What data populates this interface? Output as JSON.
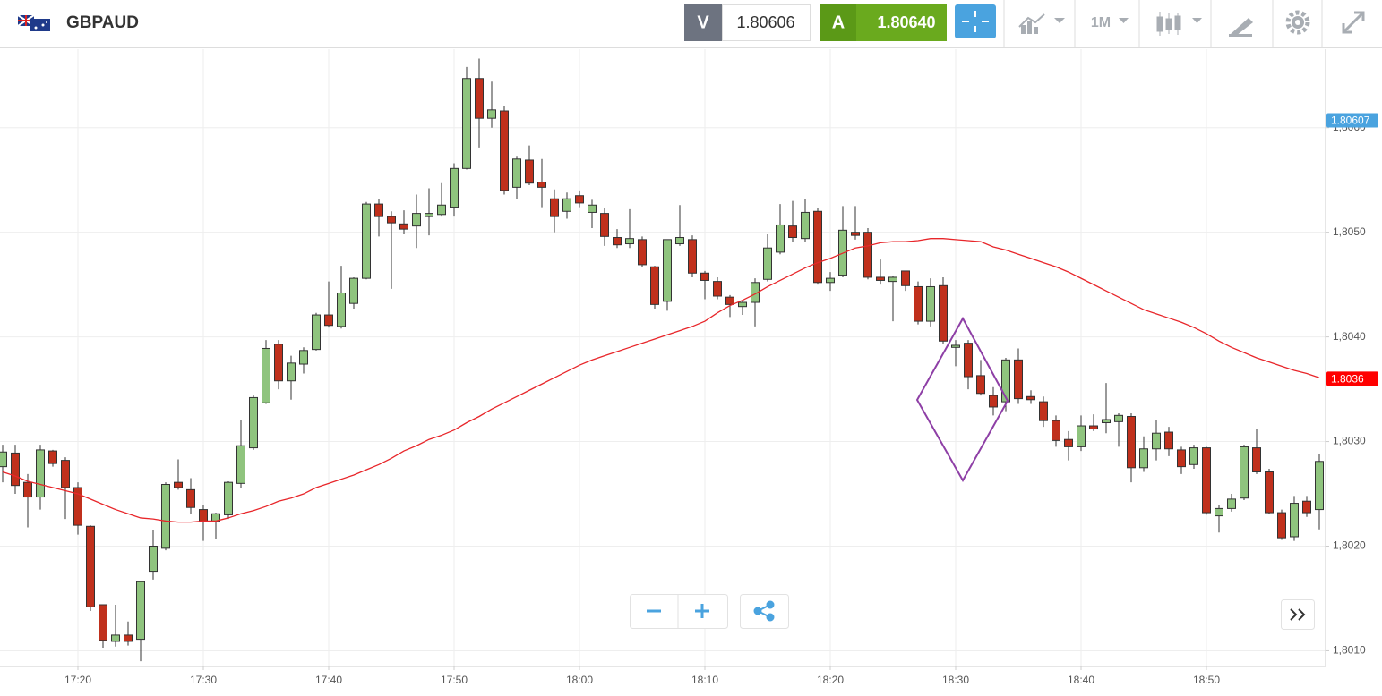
{
  "header": {
    "symbol": "GBPAUD",
    "sell_label": "V",
    "sell_price": "1.80606",
    "buy_label": "A",
    "buy_price": "1.80640",
    "timeframe": "1M"
  },
  "chart_data": {
    "type": "candlestick",
    "x": [
      "17:14",
      "17:15",
      "17:16",
      "17:17",
      "17:18",
      "17:19",
      "17:20",
      "17:21",
      "17:22",
      "17:23",
      "17:24",
      "17:25",
      "17:26",
      "17:27",
      "17:28",
      "17:29",
      "17:30",
      "17:31",
      "17:32",
      "17:33",
      "17:34",
      "17:35",
      "17:36",
      "17:37",
      "17:38",
      "17:39",
      "17:40",
      "17:41",
      "17:42",
      "17:43",
      "17:44",
      "17:45",
      "17:46",
      "17:47",
      "17:48",
      "17:49",
      "17:50",
      "17:51",
      "17:52",
      "17:53",
      "17:54",
      "17:55",
      "17:56",
      "17:57",
      "17:58",
      "17:59",
      "18:00",
      "18:01",
      "18:02",
      "18:03",
      "18:04",
      "18:05",
      "18:06",
      "18:07",
      "18:08",
      "18:09",
      "18:10",
      "18:11",
      "18:12",
      "18:13",
      "18:14",
      "18:15",
      "18:16",
      "18:17",
      "18:18",
      "18:19",
      "18:20",
      "18:21",
      "18:22",
      "18:23",
      "18:24",
      "18:25",
      "18:26",
      "18:27",
      "18:28",
      "18:29",
      "18:30",
      "18:31",
      "18:32",
      "18:33",
      "18:34",
      "18:35",
      "18:36",
      "18:37",
      "18:38",
      "18:39",
      "18:40",
      "18:41",
      "18:42",
      "18:43",
      "18:44",
      "18:45",
      "18:46",
      "18:47",
      "18:48",
      "18:49",
      "18:50",
      "18:51",
      "18:52",
      "18:53",
      "18:54",
      "18:55",
      "18:56",
      "18:57",
      "18:58",
      "18:59"
    ],
    "open": [
      1.80276,
      1.80289,
      1.80261,
      1.80247,
      1.80291,
      1.80282,
      1.80256,
      1.80219,
      1.80144,
      1.80109,
      1.80115,
      1.80111,
      1.80176,
      1.80198,
      1.80261,
      1.80254,
      1.80235,
      1.80224,
      1.8023,
      1.8026,
      1.80294,
      1.80337,
      1.80393,
      1.80358,
      1.80374,
      1.80388,
      1.80421,
      1.8041,
      1.80432,
      1.80456,
      1.80527,
      1.80515,
      1.80508,
      1.80506,
      1.80515,
      1.80517,
      1.80524,
      1.80561,
      1.80647,
      1.80609,
      1.80616,
      1.80543,
      1.80569,
      1.80548,
      1.80532,
      1.8052,
      1.80535,
      1.80519,
      1.80518,
      1.80495,
      1.80489,
      1.80493,
      1.80467,
      1.80434,
      1.80489,
      1.80493,
      1.80461,
      1.80453,
      1.80438,
      1.80429,
      1.80433,
      1.80455,
      1.80481,
      1.80506,
      1.80494,
      1.8052,
      1.80452,
      1.80459,
      1.805,
      1.805,
      1.80457,
      1.80453,
      1.80463,
      1.80448,
      1.80415,
      1.80449,
      1.8039,
      1.80394,
      1.80363,
      1.80344,
      1.80338,
      1.80378,
      1.80343,
      1.80338,
      1.8032,
      1.80302,
      1.80295,
      1.80315,
      1.80318,
      1.80319,
      1.80324,
      1.80275,
      1.80293,
      1.80309,
      1.80292,
      1.80278,
      1.80294,
      1.80229,
      1.80236,
      1.80246,
      1.80294,
      1.80271,
      1.80232,
      1.80209,
      1.80243,
      1.80235
    ],
    "high": [
      1.80297,
      1.80297,
      1.80269,
      1.80297,
      1.80292,
      1.80285,
      1.80261,
      1.8022,
      1.80144,
      1.80144,
      1.80128,
      1.80166,
      1.80215,
      1.80261,
      1.80283,
      1.80265,
      1.80239,
      1.80232,
      1.80262,
      1.80321,
      1.80344,
      1.80397,
      1.80397,
      1.80382,
      1.8039,
      1.80423,
      1.80453,
      1.80468,
      1.80457,
      1.80529,
      1.80532,
      1.8052,
      1.80521,
      1.80536,
      1.80542,
      1.80547,
      1.80566,
      1.80658,
      1.80666,
      1.80644,
      1.80621,
      1.80573,
      1.80583,
      1.8057,
      1.80541,
      1.80538,
      1.8054,
      1.80531,
      1.80523,
      1.80503,
      1.80522,
      1.80496,
      1.80468,
      1.80493,
      1.80526,
      1.80497,
      1.80463,
      1.80457,
      1.8044,
      1.80435,
      1.80456,
      1.80498,
      1.80527,
      1.8053,
      1.80532,
      1.80523,
      1.80462,
      1.80525,
      1.80525,
      1.80504,
      1.80474,
      1.80458,
      1.80463,
      1.80453,
      1.80456,
      1.80457,
      1.80397,
      1.80397,
      1.80378,
      1.80352,
      1.8038,
      1.80389,
      1.80349,
      1.80343,
      1.80325,
      1.8031,
      1.80325,
      1.80326,
      1.80356,
      1.80327,
      1.80327,
      1.80305,
      1.80321,
      1.80314,
      1.80295,
      1.80297,
      1.80295,
      1.80239,
      1.8025,
      1.80297,
      1.80312,
      1.80274,
      1.80235,
      1.80248,
      1.80248,
      1.80288
    ],
    "low": [
      1.80261,
      1.8025,
      1.80218,
      1.80235,
      1.80276,
      1.80226,
      1.80211,
      1.80138,
      1.80103,
      1.80104,
      1.80105,
      1.8009,
      1.80168,
      1.80196,
      1.80254,
      1.80231,
      1.80205,
      1.80207,
      1.80226,
      1.80256,
      1.80292,
      1.80336,
      1.8035,
      1.8034,
      1.80365,
      1.80387,
      1.80409,
      1.80408,
      1.80427,
      1.80455,
      1.80496,
      1.80446,
      1.80498,
      1.80485,
      1.80497,
      1.80515,
      1.80515,
      1.8056,
      1.80581,
      1.806,
      1.80536,
      1.80532,
      1.80545,
      1.80524,
      1.805,
      1.80513,
      1.80524,
      1.80504,
      1.80487,
      1.80485,
      1.80485,
      1.80467,
      1.80427,
      1.80425,
      1.80487,
      1.80457,
      1.80436,
      1.80436,
      1.80419,
      1.80421,
      1.8041,
      1.80453,
      1.80479,
      1.80491,
      1.80491,
      1.8045,
      1.80444,
      1.80457,
      1.80493,
      1.80455,
      1.8045,
      1.80415,
      1.80444,
      1.80412,
      1.8041,
      1.80393,
      1.80372,
      1.8035,
      1.80344,
      1.80325,
      1.80329,
      1.80336,
      1.80336,
      1.80314,
      1.80295,
      1.80282,
      1.80291,
      1.8031,
      1.80308,
      1.80295,
      1.80261,
      1.80271,
      1.80282,
      1.80286,
      1.80269,
      1.80274,
      1.8023,
      1.80213,
      1.80233,
      1.80244,
      1.80269,
      1.80231,
      1.80206,
      1.80205,
      1.80228,
      1.80216
    ],
    "close": [
      1.8029,
      1.80258,
      1.80247,
      1.80292,
      1.80279,
      1.80256,
      1.8022,
      1.80142,
      1.8011,
      1.80115,
      1.80109,
      1.80166,
      1.802,
      1.80259,
      1.80256,
      1.80237,
      1.80224,
      1.80231,
      1.80261,
      1.80296,
      1.80342,
      1.80389,
      1.80358,
      1.80375,
      1.80387,
      1.80421,
      1.80411,
      1.80442,
      1.80456,
      1.80527,
      1.80515,
      1.80509,
      1.80503,
      1.80518,
      1.80518,
      1.80526,
      1.80561,
      1.80647,
      1.80609,
      1.80617,
      1.8054,
      1.8057,
      1.80547,
      1.80543,
      1.80515,
      1.80532,
      1.80528,
      1.80526,
      1.80496,
      1.80488,
      1.80494,
      1.80469,
      1.80431,
      1.80493,
      1.80495,
      1.80461,
      1.80454,
      1.80439,
      1.80431,
      1.80433,
      1.80452,
      1.80485,
      1.80507,
      1.80495,
      1.80519,
      1.80452,
      1.80456,
      1.80502,
      1.80497,
      1.80457,
      1.80454,
      1.80457,
      1.80449,
      1.80415,
      1.80448,
      1.80396,
      1.80392,
      1.80362,
      1.80346,
      1.80333,
      1.80378,
      1.80341,
      1.8034,
      1.8032,
      1.80301,
      1.80295,
      1.80315,
      1.80312,
      1.80321,
      1.80325,
      1.80275,
      1.80293,
      1.80308,
      1.80293,
      1.80276,
      1.80294,
      1.80232,
      1.80236,
      1.80245,
      1.80295,
      1.80271,
      1.80232,
      1.80208,
      1.80241,
      1.80232,
      1.80281
    ],
    "up_color": "#8fc47e",
    "down_color": "#c0301c",
    "series": [
      {
        "color": "#e8262a",
        "values": [
          1.80271,
          1.80267,
          1.80262,
          1.80259,
          1.80256,
          1.80253,
          1.8025,
          1.80245,
          1.8024,
          1.80235,
          1.80231,
          1.80227,
          1.80226,
          1.80224,
          1.80223,
          1.80223,
          1.80224,
          1.80224,
          1.80227,
          1.80231,
          1.80234,
          1.80238,
          1.80243,
          1.80246,
          1.8025,
          1.80256,
          1.8026,
          1.80264,
          1.80268,
          1.80273,
          1.80278,
          1.80284,
          1.80291,
          1.80296,
          1.80302,
          1.80306,
          1.80311,
          1.80318,
          1.80324,
          1.80331,
          1.80337,
          1.80343,
          1.80349,
          1.80355,
          1.80361,
          1.80367,
          1.80373,
          1.80378,
          1.80382,
          1.80386,
          1.8039,
          1.80394,
          1.80398,
          1.80402,
          1.80406,
          1.8041,
          1.80415,
          1.80423,
          1.8043,
          1.80435,
          1.80441,
          1.80448,
          1.80454,
          1.8046,
          1.80466,
          1.80471,
          1.80475,
          1.8048,
          1.80485,
          1.80487,
          1.8049,
          1.80491,
          1.80491,
          1.80492,
          1.80494,
          1.80494,
          1.80493,
          1.80492,
          1.80491,
          1.80486,
          1.80483,
          1.80479,
          1.80475,
          1.80471,
          1.80467,
          1.80462,
          1.80456,
          1.8045,
          1.80444,
          1.80438,
          1.80432,
          1.80426,
          1.80422,
          1.80418,
          1.80414,
          1.80409,
          1.80403,
          1.80396,
          1.8039,
          1.80385,
          1.8038,
          1.80376,
          1.80372,
          1.80368,
          1.80365,
          1.80361
        ]
      }
    ],
    "ylim": [
      1.80085,
      1.80675
    ],
    "yticks": [
      {
        "value": 1.801,
        "label": "1,8010"
      },
      {
        "value": 1.802,
        "label": "1,8020"
      },
      {
        "value": 1.803,
        "label": "1,8030"
      },
      {
        "value": 1.804,
        "label": "1,8040"
      },
      {
        "value": 1.805,
        "label": "1,8050"
      },
      {
        "value": 1.806,
        "label": "1,8060"
      }
    ],
    "xticks": [
      "17:20",
      "17:30",
      "17:40",
      "17:50",
      "18:00",
      "18:10",
      "18:20",
      "18:30",
      "18:40",
      "18:50"
    ],
    "grid": true,
    "price_markers": [
      {
        "value": 1.80607,
        "color": "#4aa3df"
      },
      {
        "value": 1.8036,
        "color": "#ff0000"
      }
    ]
  }
}
